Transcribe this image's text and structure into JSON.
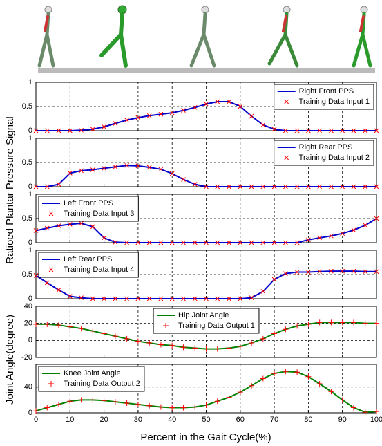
{
  "chart_data": [
    {
      "type": "line",
      "xlim": [
        0,
        100
      ],
      "xticks": [
        0,
        10,
        20,
        30,
        40,
        50,
        60,
        70,
        80,
        90,
        100
      ],
      "ylim": [
        0,
        1
      ],
      "yticks": [
        0,
        0.5,
        1
      ],
      "grid": true,
      "legend": "upper right",
      "x": [
        0,
        3.3,
        6.7,
        10,
        13.3,
        16.7,
        20,
        23.3,
        26.7,
        30,
        33.3,
        36.7,
        40,
        43.3,
        46.7,
        50,
        53.3,
        56.7,
        60,
        63.3,
        66.7,
        70,
        73.3,
        76.7,
        80,
        83.3,
        86.7,
        90,
        93.3,
        96.7,
        100
      ],
      "series": [
        {
          "name": "Right Front PPS",
          "color": "#0000cc",
          "values": [
            0,
            0,
            0,
            0,
            0.01,
            0.03,
            0.08,
            0.15,
            0.22,
            0.27,
            0.31,
            0.34,
            0.37,
            0.42,
            0.48,
            0.55,
            0.6,
            0.6,
            0.5,
            0.3,
            0.12,
            0.03,
            0,
            0,
            0,
            0,
            0,
            0,
            0,
            0,
            0
          ]
        },
        {
          "name": "Training Data Input 1",
          "color": "#ff0000",
          "marker": "x",
          "values": [
            0,
            0,
            0,
            0,
            0.01,
            0.03,
            0.08,
            0.15,
            0.22,
            0.27,
            0.31,
            0.34,
            0.37,
            0.42,
            0.48,
            0.55,
            0.6,
            0.6,
            0.5,
            0.3,
            0.12,
            0.03,
            0,
            0,
            0,
            0,
            0,
            0,
            0,
            0,
            0
          ]
        }
      ]
    },
    {
      "type": "line",
      "xlim": [
        0,
        100
      ],
      "xticks": [
        0,
        10,
        20,
        30,
        40,
        50,
        60,
        70,
        80,
        90,
        100
      ],
      "ylim": [
        0,
        1
      ],
      "yticks": [
        0,
        0.5,
        1
      ],
      "grid": true,
      "legend": "upper right",
      "x": [
        0,
        3.3,
        6.7,
        10,
        13.3,
        16.7,
        20,
        23.3,
        26.7,
        30,
        33.3,
        36.7,
        40,
        43.3,
        46.7,
        50,
        53.3,
        56.7,
        60,
        63.3,
        66.7,
        70,
        73.3,
        76.7,
        80,
        83.3,
        86.7,
        90,
        93.3,
        96.7,
        100
      ],
      "series": [
        {
          "name": "Right Rear PPS",
          "color": "#0000cc",
          "values": [
            0,
            0,
            0.05,
            0.28,
            0.33,
            0.35,
            0.38,
            0.41,
            0.44,
            0.43,
            0.4,
            0.36,
            0.27,
            0.15,
            0.05,
            0,
            0,
            0,
            0,
            0,
            0,
            0,
            0,
            0,
            0,
            0,
            0,
            0,
            0,
            0,
            0
          ]
        },
        {
          "name": "Training Data Input 2",
          "color": "#ff0000",
          "marker": "x",
          "values": [
            0,
            0,
            0.05,
            0.28,
            0.33,
            0.35,
            0.38,
            0.41,
            0.44,
            0.43,
            0.4,
            0.36,
            0.27,
            0.15,
            0.05,
            0,
            0,
            0,
            0,
            0,
            0,
            0,
            0,
            0,
            0,
            0,
            0,
            0,
            0,
            0,
            0
          ]
        }
      ]
    },
    {
      "type": "line",
      "xlim": [
        0,
        100
      ],
      "xticks": [
        0,
        10,
        20,
        30,
        40,
        50,
        60,
        70,
        80,
        90,
        100
      ],
      "ylim": [
        0,
        1
      ],
      "yticks": [
        0,
        0.5,
        1
      ],
      "grid": true,
      "legend": "upper left",
      "x": [
        0,
        3.3,
        6.7,
        10,
        13.3,
        16.7,
        20,
        23.3,
        26.7,
        30,
        33.3,
        36.7,
        40,
        43.3,
        46.7,
        50,
        53.3,
        56.7,
        60,
        63.3,
        66.7,
        70,
        73.3,
        76.7,
        80,
        83.3,
        86.7,
        90,
        93.3,
        96.7,
        100
      ],
      "series": [
        {
          "name": "Left Front PPS",
          "color": "#0000cc",
          "values": [
            0.25,
            0.3,
            0.35,
            0.38,
            0.4,
            0.33,
            0.1,
            0.01,
            0,
            0,
            0,
            0,
            0,
            0,
            0,
            0,
            0,
            0,
            0,
            0,
            0,
            0,
            0,
            0,
            0.06,
            0.1,
            0.14,
            0.19,
            0.26,
            0.36,
            0.5
          ]
        },
        {
          "name": "Training Data Input 3",
          "color": "#ff0000",
          "marker": "x",
          "values": [
            0.25,
            0.3,
            0.35,
            0.38,
            0.4,
            0.33,
            0.1,
            0.01,
            0,
            0,
            0,
            0,
            0,
            0,
            0,
            0,
            0,
            0,
            0,
            0,
            0,
            0,
            0,
            0,
            0.06,
            0.1,
            0.14,
            0.19,
            0.26,
            0.36,
            0.5
          ]
        }
      ]
    },
    {
      "type": "line",
      "xlim": [
        0,
        100
      ],
      "xticks": [
        0,
        10,
        20,
        30,
        40,
        50,
        60,
        70,
        80,
        90,
        100
      ],
      "ylim": [
        0,
        1
      ],
      "yticks": [
        0,
        0.5,
        1
      ],
      "grid": true,
      "legend": "upper left",
      "x": [
        0,
        3.3,
        6.7,
        10,
        13.3,
        16.7,
        20,
        23.3,
        26.7,
        30,
        33.3,
        36.7,
        40,
        43.3,
        46.7,
        50,
        53.3,
        56.7,
        60,
        63.3,
        66.7,
        70,
        73.3,
        76.7,
        80,
        83.3,
        86.7,
        90,
        93.3,
        96.7,
        100
      ],
      "series": [
        {
          "name": "Left Rear PPS",
          "color": "#0000cc",
          "values": [
            0.48,
            0.33,
            0.18,
            0.05,
            0.02,
            0,
            0,
            0,
            0,
            0,
            0,
            0,
            0,
            0,
            0,
            0,
            0,
            0,
            0,
            0.02,
            0.15,
            0.4,
            0.52,
            0.55,
            0.55,
            0.56,
            0.57,
            0.57,
            0.57,
            0.56,
            0.56
          ]
        },
        {
          "name": "Training Data Input 4",
          "color": "#ff0000",
          "marker": "x",
          "values": [
            0.48,
            0.33,
            0.18,
            0.05,
            0.02,
            0,
            0,
            0,
            0,
            0,
            0,
            0,
            0,
            0,
            0,
            0,
            0,
            0,
            0,
            0.02,
            0.15,
            0.4,
            0.52,
            0.55,
            0.55,
            0.56,
            0.57,
            0.57,
            0.57,
            0.56,
            0.56
          ]
        }
      ]
    },
    {
      "type": "line",
      "xlim": [
        0,
        100
      ],
      "xticks": [
        0,
        10,
        20,
        30,
        40,
        50,
        60,
        70,
        80,
        90,
        100
      ],
      "ylim": [
        -20,
        40
      ],
      "yticks": [
        -20,
        0,
        20,
        40
      ],
      "grid": true,
      "legend": "upper center",
      "x": [
        0,
        3.3,
        6.7,
        10,
        13.3,
        16.7,
        20,
        23.3,
        26.7,
        30,
        33.3,
        36.7,
        40,
        43.3,
        46.7,
        50,
        53.3,
        56.7,
        60,
        63.3,
        66.7,
        70,
        73.3,
        76.7,
        80,
        83.3,
        86.7,
        90,
        93.3,
        96.7,
        100
      ],
      "series": [
        {
          "name": "Hip Joint Angle",
          "color": "#008000",
          "values": [
            19,
            19,
            18,
            16,
            14,
            11,
            8,
            5,
            2,
            -1,
            -3,
            -5,
            -6,
            -8,
            -9,
            -10,
            -10,
            -9,
            -7,
            -3,
            2,
            8,
            13,
            17,
            19,
            21,
            21,
            21,
            21,
            20,
            20
          ]
        },
        {
          "name": "Training Data Output 1",
          "color": "#ff0000",
          "marker": "+",
          "values": [
            19,
            19,
            18,
            16,
            14,
            11,
            8,
            5,
            2,
            -1,
            -3,
            -5,
            -6,
            -8,
            -9,
            -10,
            -10,
            -9,
            -7,
            -3,
            2,
            8,
            13,
            17,
            19,
            21,
            21,
            21,
            21,
            20,
            20
          ]
        }
      ]
    },
    {
      "type": "line",
      "xlim": [
        0,
        100
      ],
      "xticks": [
        0,
        10,
        20,
        30,
        40,
        50,
        60,
        70,
        80,
        90,
        100
      ],
      "ylim": [
        0,
        75
      ],
      "yticks": [
        0,
        40
      ],
      "grid": true,
      "legend": "upper left",
      "show_xtick_labels": true,
      "x": [
        0,
        3.3,
        6.7,
        10,
        13.3,
        16.7,
        20,
        23.3,
        26.7,
        30,
        33.3,
        36.7,
        40,
        43.3,
        46.7,
        50,
        53.3,
        56.7,
        60,
        63.3,
        66.7,
        70,
        73.3,
        76.7,
        80,
        83.3,
        86.7,
        90,
        93.3,
        96.7,
        100
      ],
      "series": [
        {
          "name": "Knee Joint Angle",
          "color": "#008000",
          "values": [
            3,
            8,
            13,
            18,
            20,
            20,
            19,
            17,
            15,
            13,
            11,
            9,
            8,
            8,
            9,
            12,
            18,
            24,
            32,
            42,
            53,
            61,
            64,
            63,
            56,
            45,
            33,
            20,
            8,
            1,
            2
          ]
        },
        {
          "name": "Training Data Output 2",
          "color": "#ff0000",
          "marker": "+",
          "values": [
            3,
            8,
            13,
            18,
            20,
            20,
            19,
            17,
            15,
            13,
            11,
            9,
            8,
            8,
            9,
            12,
            18,
            24,
            32,
            42,
            53,
            61,
            64,
            63,
            56,
            45,
            33,
            20,
            8,
            1,
            2
          ]
        }
      ]
    }
  ],
  "shared_labels": {
    "pressure_ylabel": "Ratioed Plantar Pressure Signal",
    "angle_ylabel": "Joint Angle(degree)",
    "xlabel": "Percent in the Gait Cycle(%)"
  }
}
